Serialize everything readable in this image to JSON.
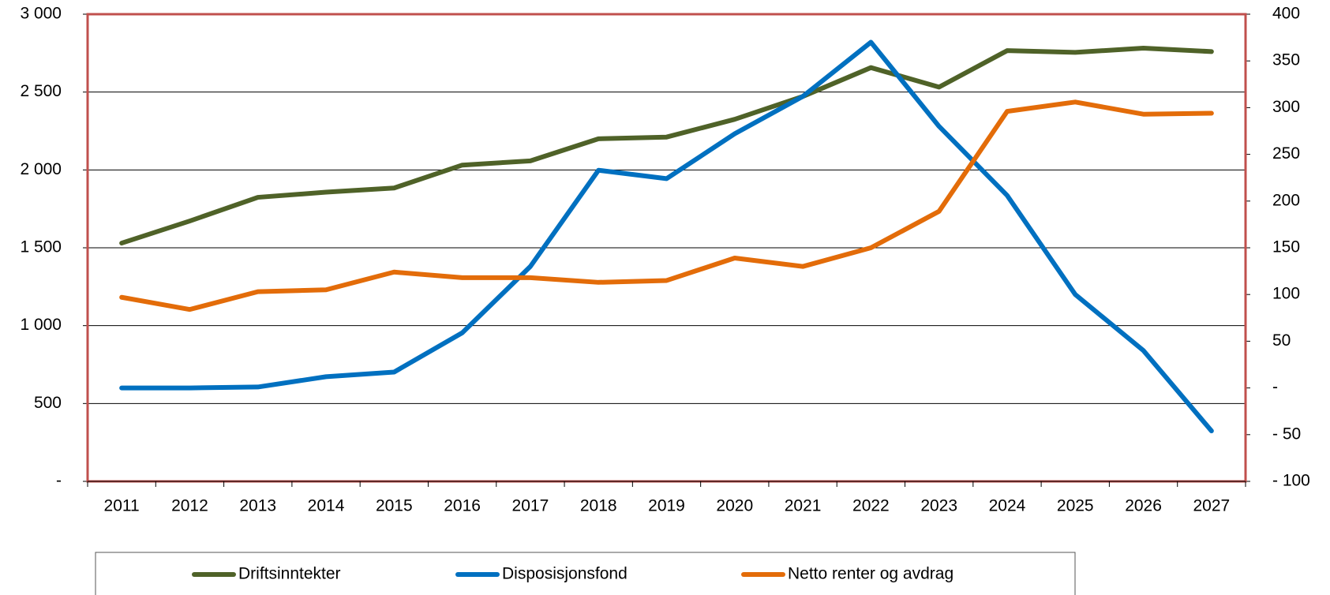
{
  "chart_data": {
    "type": "line",
    "categories": [
      "2011",
      "2012",
      "2013",
      "2014",
      "2015",
      "2016",
      "2017",
      "2018",
      "2019",
      "2020",
      "2021",
      "2022",
      "2023",
      "2024",
      "2025",
      "2026",
      "2027"
    ],
    "series": [
      {
        "name": "Driftsinntekter",
        "color": "#4f6228",
        "axis": "y",
        "values": [
          1530,
          1672,
          1824,
          1857,
          1884,
          2031,
          2058,
          2200,
          2211,
          2325,
          2472,
          2657,
          2532,
          2766,
          2755,
          2782,
          2760
        ]
      },
      {
        "name": "Disposisjonsfond",
        "color": "#0070c0",
        "axis": "y2",
        "values": [
          0,
          0,
          1,
          12,
          17,
          59,
          130,
          233,
          224,
          272,
          312,
          370,
          280,
          206,
          100,
          40,
          -46
        ]
      },
      {
        "name": "Netto renter og avdrag",
        "color": "#e36c09",
        "axis": "y2",
        "values": [
          97,
          84,
          103,
          105,
          124,
          118,
          118,
          113,
          115,
          139,
          130,
          150,
          189,
          296,
          306,
          293,
          294
        ]
      }
    ],
    "ylim": [
      0,
      3000
    ],
    "yticks": [
      {
        "value": 0,
        "label": "-"
      },
      {
        "value": 500,
        "label": "500"
      },
      {
        "value": 1000,
        "label": "1 000"
      },
      {
        "value": 1500,
        "label": "1 500"
      },
      {
        "value": 2000,
        "label": "2 000"
      },
      {
        "value": 2500,
        "label": "2 500"
      },
      {
        "value": 3000,
        "label": "3 000"
      }
    ],
    "y2lim": [
      -100,
      400
    ],
    "y2ticks": [
      {
        "value": -100,
        "label": "- 100"
      },
      {
        "value": -50,
        "label": "- 50"
      },
      {
        "value": 0,
        "label": "-"
      },
      50,
      100,
      150,
      200,
      250,
      300,
      350,
      400
    ],
    "grid": true,
    "legend": "bottom"
  }
}
